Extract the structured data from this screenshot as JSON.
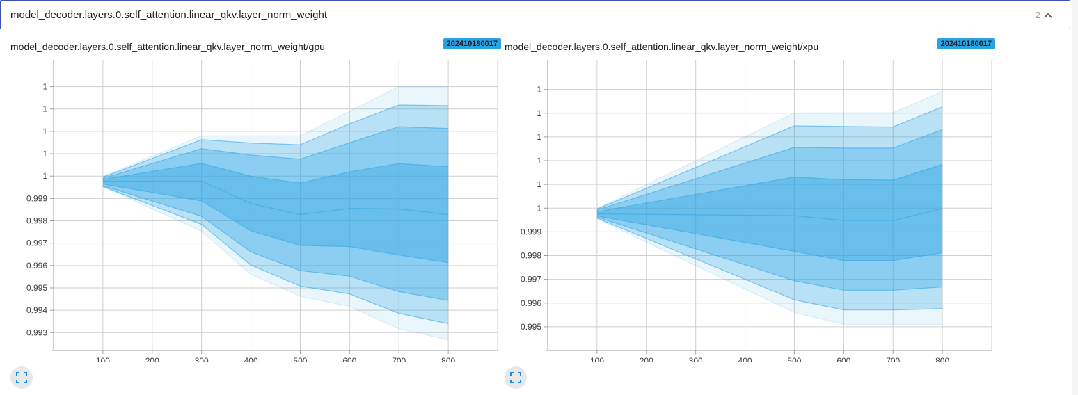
{
  "header": {
    "title": "model_decoder.layers.0.self_attention.linear_qkv.layer_norm_weight",
    "count": "2"
  },
  "colors": {
    "accent": "#3f51b5",
    "band": "#29a3e3",
    "badge": "#29a3e3"
  },
  "chart_data": [
    {
      "type": "area",
      "title": "model_decoder.layers.0.self_attention.linear_qkv.layer_norm_weight/gpu",
      "run_label": "202410180017",
      "xlabel": "",
      "ylabel": "",
      "xlim": [
        0,
        900
      ],
      "ylim": [
        0.9922,
        1.0052
      ],
      "x": [
        100,
        300,
        400,
        500,
        600,
        700,
        800
      ],
      "x_ticks": [
        100,
        200,
        300,
        400,
        500,
        600,
        700,
        800
      ],
      "y_ticks": [
        {
          "value": 0.993,
          "label": "0.993"
        },
        {
          "value": 0.994,
          "label": "0.994"
        },
        {
          "value": 0.995,
          "label": "0.995"
        },
        {
          "value": 0.996,
          "label": "0.996"
        },
        {
          "value": 0.997,
          "label": "0.997"
        },
        {
          "value": 0.998,
          "label": "0.998"
        },
        {
          "value": 0.999,
          "label": "0.999"
        },
        {
          "value": 1.0,
          "label": "1"
        },
        {
          "value": 1.001,
          "label": "1"
        },
        {
          "value": 1.002,
          "label": "1"
        },
        {
          "value": 1.003,
          "label": "1"
        },
        {
          "value": 1.004,
          "label": "1"
        }
      ],
      "grid": true,
      "series": [
        {
          "values": [
            0.99953,
            0.99753,
            0.9956,
            0.99463,
            0.99417,
            0.99317,
            0.99267
          ]
        },
        {
          "values": [
            0.99953,
            0.99784,
            0.99602,
            0.99508,
            0.99473,
            0.99386,
            0.9934
          ]
        },
        {
          "values": [
            0.99957,
            0.9982,
            0.99661,
            0.99577,
            0.99552,
            0.99483,
            0.99444
          ]
        },
        {
          "values": [
            0.99965,
            0.99889,
            0.99755,
            0.9969,
            0.99685,
            0.99647,
            0.99613
          ]
        },
        {
          "values": [
            0.99977,
            0.99978,
            0.99877,
            0.99828,
            0.99855,
            0.99853,
            0.99828
          ]
        },
        {
          "values": [
            0.99985,
            1.00057,
            0.99999,
            0.99969,
            1.00019,
            1.00056,
            1.00042
          ]
        },
        {
          "values": [
            0.9999,
            1.00123,
            1.00094,
            1.00076,
            1.00149,
            1.00221,
            1.00213
          ]
        },
        {
          "values": [
            0.99995,
            1.00163,
            1.00148,
            1.0014,
            1.00234,
            1.00318,
            1.00315
          ]
        },
        {
          "values": [
            0.99998,
            1.0018,
            1.0018,
            1.0018,
            1.0029,
            1.004,
            1.004
          ]
        }
      ]
    },
    {
      "type": "area",
      "title": "model_decoder.layers.0.self_attention.linear_qkv.layer_norm_weight/xpu",
      "run_label": "202410180017",
      "xlabel": "",
      "ylabel": "",
      "xlim": [
        0,
        900
      ],
      "ylim": [
        0.994,
        1.00625
      ],
      "x": [
        100,
        500,
        600,
        700,
        800
      ],
      "x_ticks": [
        100,
        200,
        300,
        400,
        500,
        600,
        700,
        800
      ],
      "y_ticks": [
        {
          "value": 0.995,
          "label": "0.995"
        },
        {
          "value": 0.996,
          "label": "0.996"
        },
        {
          "value": 0.997,
          "label": "0.997"
        },
        {
          "value": 0.998,
          "label": "0.998"
        },
        {
          "value": 0.999,
          "label": "0.999"
        },
        {
          "value": 1.0,
          "label": "1"
        },
        {
          "value": 1.001,
          "label": "1"
        },
        {
          "value": 1.002,
          "label": "1"
        },
        {
          "value": 1.003,
          "label": "1"
        },
        {
          "value": 1.004,
          "label": "1"
        },
        {
          "value": 1.005,
          "label": "1"
        }
      ],
      "grid": true,
      "series": [
        {
          "values": [
            0.99955,
            0.9956,
            0.9951,
            0.9951,
            0.9951
          ]
        },
        {
          "values": [
            0.99958,
            0.99614,
            0.99571,
            0.99571,
            0.99576
          ]
        },
        {
          "values": [
            0.99962,
            0.99694,
            0.99654,
            0.99654,
            0.99668
          ]
        },
        {
          "values": [
            0.99967,
            0.99818,
            0.99779,
            0.99779,
            0.99812
          ]
        },
        {
          "values": [
            0.99976,
            0.99968,
            0.99948,
            0.99948,
            0.99998
          ]
        },
        {
          "values": [
            0.99985,
            1.00131,
            1.0012,
            1.00118,
            1.00184
          ]
        },
        {
          "values": [
            0.99992,
            1.00256,
            1.00253,
            1.00253,
            1.00331
          ]
        },
        {
          "values": [
            0.99996,
            1.00347,
            1.00344,
            1.00342,
            1.00427
          ]
        },
        {
          "values": [
            0.99998,
            1.00401,
            1.00402,
            1.00402,
            1.00492
          ]
        }
      ]
    }
  ]
}
